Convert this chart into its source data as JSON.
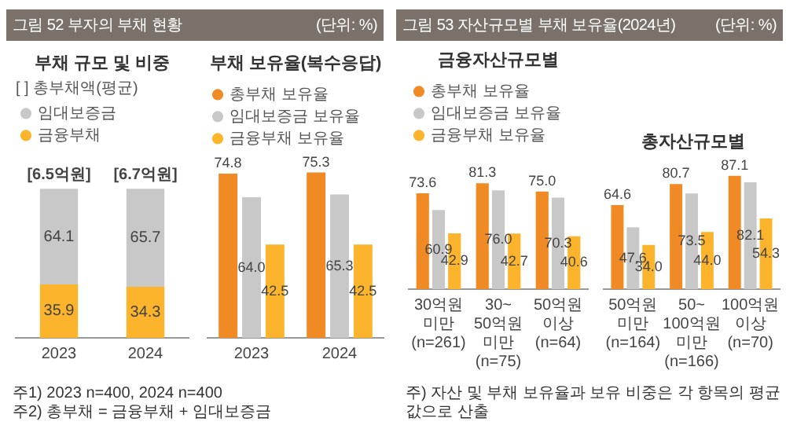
{
  "chart_data": [
    {
      "type": "bar",
      "title": "부채 규모 및 비중",
      "categories": [
        "2023",
        "2024"
      ],
      "stacked": true,
      "legend": "top",
      "legend_title": "[ ] 총부채액(평균)",
      "tick_labels": "x",
      "grid": false,
      "series": [
        {
          "name": "금융부채",
          "color": "#fbb42b",
          "values": [
            35.9,
            34.3
          ],
          "value_labels": [
            "35.9",
            "34.3"
          ]
        },
        {
          "name": "임대보증금",
          "color": "#c8c8c8",
          "values": [
            64.1,
            65.7
          ],
          "value_labels": [
            "64.1",
            "65.7"
          ]
        }
      ],
      "annotations": [
        "그림 52  부자의 부채 현황",
        "(단위: %)",
        {
          "text": "[6.5억원]",
          "x": "2023",
          "y": 100
        },
        {
          "text": "[6.7억원]",
          "x": "2024",
          "y": 100
        }
      ]
    },
    {
      "type": "bar",
      "title": "부채 보유율(복수응답)",
      "categories": [
        "2023",
        "2024"
      ],
      "legend": "top",
      "tick_labels": "x",
      "grid": false,
      "series": [
        {
          "name": "총부채 보유율",
          "color": "#f08a24",
          "values": [
            74.8,
            75.3
          ],
          "value_labels": [
            "74.8",
            "75.3"
          ]
        },
        {
          "name": "임대보증금 보유율",
          "color": "#c8c8c8",
          "values": [
            64.0,
            65.3
          ],
          "value_labels": [
            "64.0",
            "65.3"
          ]
        },
        {
          "name": "금융부채 보유율",
          "color": "#fbb42b",
          "values": [
            42.5,
            42.5
          ],
          "value_labels": [
            "42.5",
            "42.5"
          ]
        }
      ],
      "annotations": [
        "주1) 2023 n=400, 2024 n=400",
        "주2) 총부채 = 금융부채 + 임대보증금"
      ]
    },
    {
      "type": "bar",
      "title": "금융자산규모별",
      "categories": [
        "30억원\n미만\n(n=261)",
        "30~50억원\n미만\n(n=75)",
        "50억원\n이상\n(n=64)"
      ],
      "legend": "top",
      "tick_labels": "x",
      "grid": false,
      "series": [
        {
          "name": "총부채 보유율",
          "color": "#f08a24",
          "values": [
            73.6,
            81.3,
            75.0
          ],
          "value_labels": [
            "73.6",
            "81.3",
            "75.0"
          ]
        },
        {
          "name": "임대보증금 보유율",
          "color": "#c8c8c8",
          "values": [
            60.9,
            76.0,
            70.3
          ],
          "value_labels": [
            "60.9",
            "76.0",
            "70.3"
          ]
        },
        {
          "name": "금융부채 보유율",
          "color": "#fbb42b",
          "values": [
            42.9,
            42.7,
            40.6
          ],
          "value_labels": [
            "42.9",
            "42.7",
            "40.6"
          ]
        }
      ],
      "annotations": [
        "그림 53  자산규모별 부채 보유율(2024년)",
        "(단위: %)"
      ]
    },
    {
      "type": "bar",
      "title": "총자산규모별",
      "categories": [
        "50억원\n미만\n(n=164)",
        "50~100억원\n미만\n(n=166)",
        "100억원\n이상\n(n=70)"
      ],
      "tick_labels": "x",
      "grid": false,
      "series": [
        {
          "color": "#f08a24",
          "values": [
            64.6,
            80.7,
            87.1
          ],
          "value_labels": [
            "64.6",
            "80.7",
            "87.1"
          ]
        },
        {
          "color": "#c8c8c8",
          "values": [
            47.6,
            73.5,
            82.1
          ],
          "value_labels": [
            "47.6",
            "73.5",
            "82.1"
          ]
        },
        {
          "color": "#fbb42b",
          "values": [
            34.0,
            44.0,
            54.3
          ],
          "value_labels": [
            "34.0",
            "44.0",
            "54.3"
          ]
        }
      ],
      "annotations": [
        "주) 자산 및 부채 보유율과 보유 비중은 각 항목의 평균값으로 산출"
      ]
    }
  ]
}
